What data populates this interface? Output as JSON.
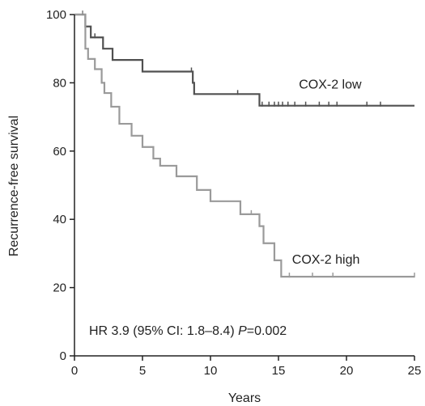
{
  "chart_data": {
    "type": "line",
    "title": "",
    "xlabel": "Years",
    "ylabel": "Recurrence-free survival",
    "xlim": [
      0,
      25
    ],
    "ylim": [
      0,
      100
    ],
    "xticks": [
      0,
      5,
      10,
      15,
      20,
      25
    ],
    "yticks": [
      0,
      20,
      40,
      60,
      80,
      100
    ],
    "grid": false,
    "legend": "inline labels",
    "annotation": {
      "hr_text": "HR 3.9 (95% CI: 1.8–8.4) ",
      "p_symbol": "P",
      "p_value": "=0.002"
    },
    "series": [
      {
        "name": "COX-2 low",
        "color": "#505050",
        "step": true,
        "points": [
          [
            0,
            100
          ],
          [
            0.8,
            100
          ],
          [
            0.8,
            96.5
          ],
          [
            1.2,
            96.5
          ],
          [
            1.2,
            93.3
          ],
          [
            2.1,
            93.3
          ],
          [
            2.1,
            90
          ],
          [
            2.8,
            90
          ],
          [
            2.8,
            86.7
          ],
          [
            5.0,
            86.7
          ],
          [
            5.0,
            83.3
          ],
          [
            8.7,
            83.3
          ],
          [
            8.7,
            80
          ],
          [
            8.8,
            80
          ],
          [
            8.8,
            76.7
          ],
          [
            13.6,
            76.7
          ],
          [
            13.6,
            73.3
          ],
          [
            25,
            73.3
          ]
        ],
        "censored": [
          [
            0.6,
            100
          ],
          [
            1.5,
            93.3
          ],
          [
            8.6,
            83.3
          ],
          [
            12.0,
            76.7
          ],
          [
            13.8,
            73.3
          ],
          [
            14.3,
            73.3
          ],
          [
            14.7,
            73.3
          ],
          [
            15.0,
            73.3
          ],
          [
            15.3,
            73.3
          ],
          [
            15.7,
            73.3
          ],
          [
            16.2,
            73.3
          ],
          [
            17.0,
            73.3
          ],
          [
            18.0,
            73.3
          ],
          [
            18.7,
            73.3
          ],
          [
            19.3,
            73.3
          ],
          [
            21.5,
            73.3
          ],
          [
            22.5,
            73.3
          ]
        ]
      },
      {
        "name": "COX-2 high",
        "color": "#9a9a9a",
        "step": true,
        "points": [
          [
            0,
            100
          ],
          [
            0.8,
            100
          ],
          [
            0.8,
            90
          ],
          [
            1.0,
            90
          ],
          [
            1.0,
            87
          ],
          [
            1.5,
            87
          ],
          [
            1.5,
            84
          ],
          [
            2.0,
            84
          ],
          [
            2.0,
            80
          ],
          [
            2.2,
            80
          ],
          [
            2.2,
            77
          ],
          [
            2.7,
            77
          ],
          [
            2.7,
            73
          ],
          [
            3.3,
            73
          ],
          [
            3.3,
            68
          ],
          [
            4.2,
            68
          ],
          [
            4.2,
            64.5
          ],
          [
            5.0,
            64.5
          ],
          [
            5.0,
            61.2
          ],
          [
            5.8,
            61.2
          ],
          [
            5.8,
            57.8
          ],
          [
            6.3,
            57.8
          ],
          [
            6.3,
            55.7
          ],
          [
            7.5,
            55.7
          ],
          [
            7.5,
            52.6
          ],
          [
            9.0,
            52.6
          ],
          [
            9.0,
            48.6
          ],
          [
            10.0,
            48.6
          ],
          [
            10.0,
            45.3
          ],
          [
            12.2,
            45.3
          ],
          [
            12.2,
            41.5
          ],
          [
            13.6,
            41.5
          ],
          [
            13.6,
            38
          ],
          [
            13.9,
            38
          ],
          [
            13.9,
            33
          ],
          [
            14.7,
            33
          ],
          [
            14.7,
            28
          ],
          [
            15.2,
            28
          ],
          [
            15.2,
            23.2
          ],
          [
            25,
            23.2
          ]
        ],
        "censored": [
          [
            0.6,
            100
          ],
          [
            13.0,
            41.5
          ],
          [
            15.8,
            23.2
          ],
          [
            17.5,
            23.2
          ],
          [
            19.0,
            23.2
          ],
          [
            25,
            23.2
          ]
        ]
      }
    ],
    "series_label_positions": [
      [
        16.5,
        78.3
      ],
      [
        16.0,
        27.0
      ]
    ]
  }
}
